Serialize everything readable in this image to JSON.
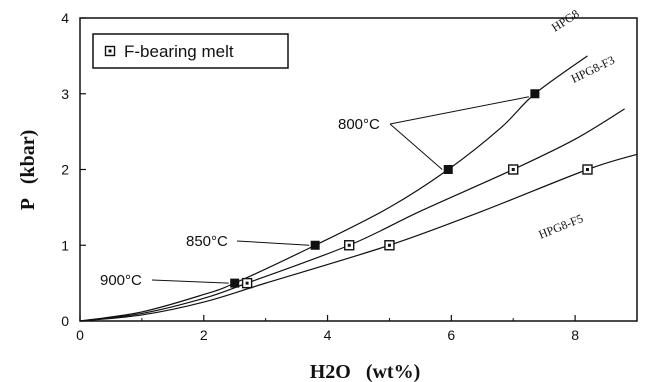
{
  "chart_data": {
    "type": "line",
    "xlabel": "H2O   (wt%)",
    "ylabel": "P   (kbar)",
    "xlim": [
      0,
      9
    ],
    "ylim": [
      0,
      4
    ],
    "x_ticks": [
      0,
      2,
      4,
      6,
      8
    ],
    "y_ticks": [
      0,
      1,
      2,
      3,
      4
    ],
    "grid": false,
    "legend": {
      "placement": "top-left",
      "entries": [
        {
          "label": "F-bearing  melt",
          "marker": "open-square-with-dot"
        }
      ]
    },
    "series": [
      {
        "name": "HPG8",
        "style": "solid",
        "curve": [
          [
            0,
            0
          ],
          [
            1,
            0.12
          ],
          [
            2,
            0.35
          ],
          [
            2.5,
            0.5
          ],
          [
            3.8,
            1.0
          ],
          [
            5,
            1.5
          ],
          [
            5.95,
            2.0
          ],
          [
            6.8,
            2.55
          ],
          [
            7.35,
            3.0
          ],
          [
            8.2,
            3.5
          ]
        ],
        "points": [
          {
            "x": 2.5,
            "y": 0.5,
            "marker": "filled-square"
          },
          {
            "x": 3.8,
            "y": 1.0,
            "marker": "filled-square"
          },
          {
            "x": 5.95,
            "y": 2.0,
            "marker": "filled-square"
          },
          {
            "x": 7.35,
            "y": 3.0,
            "marker": "filled-square"
          }
        ]
      },
      {
        "name": "HPG8-F3",
        "style": "solid",
        "curve": [
          [
            0,
            0
          ],
          [
            1,
            0.1
          ],
          [
            2,
            0.3
          ],
          [
            2.7,
            0.5
          ],
          [
            4.35,
            1.0
          ],
          [
            5.5,
            1.45
          ],
          [
            7.0,
            2.0
          ],
          [
            8.0,
            2.4
          ],
          [
            8.8,
            2.8
          ]
        ],
        "points": [
          {
            "x": 2.7,
            "y": 0.5,
            "marker": "open-square-with-dot"
          },
          {
            "x": 4.35,
            "y": 1.0,
            "marker": "open-square-with-dot"
          },
          {
            "x": 7.0,
            "y": 2.0,
            "marker": "open-square-with-dot"
          }
        ]
      },
      {
        "name": "HPG8-F5",
        "style": "solid",
        "curve": [
          [
            0,
            0
          ],
          [
            1,
            0.08
          ],
          [
            2,
            0.25
          ],
          [
            3,
            0.5
          ],
          [
            5.0,
            1.0
          ],
          [
            6.5,
            1.45
          ],
          [
            8.2,
            2.0
          ],
          [
            9.0,
            2.2
          ]
        ],
        "points": [
          {
            "x": 5.0,
            "y": 1.0,
            "marker": "open-square-with-dot"
          },
          {
            "x": 8.2,
            "y": 2.0,
            "marker": "open-square-with-dot"
          }
        ]
      }
    ],
    "annotations": [
      {
        "text": "900°C",
        "points_to": [
          [
            2.5,
            0.5
          ]
        ]
      },
      {
        "text": "850°C",
        "points_to": [
          [
            3.8,
            1.0
          ]
        ]
      },
      {
        "text": "800°C",
        "points_to": [
          [
            5.95,
            2.0
          ],
          [
            7.35,
            3.0
          ]
        ]
      }
    ]
  }
}
